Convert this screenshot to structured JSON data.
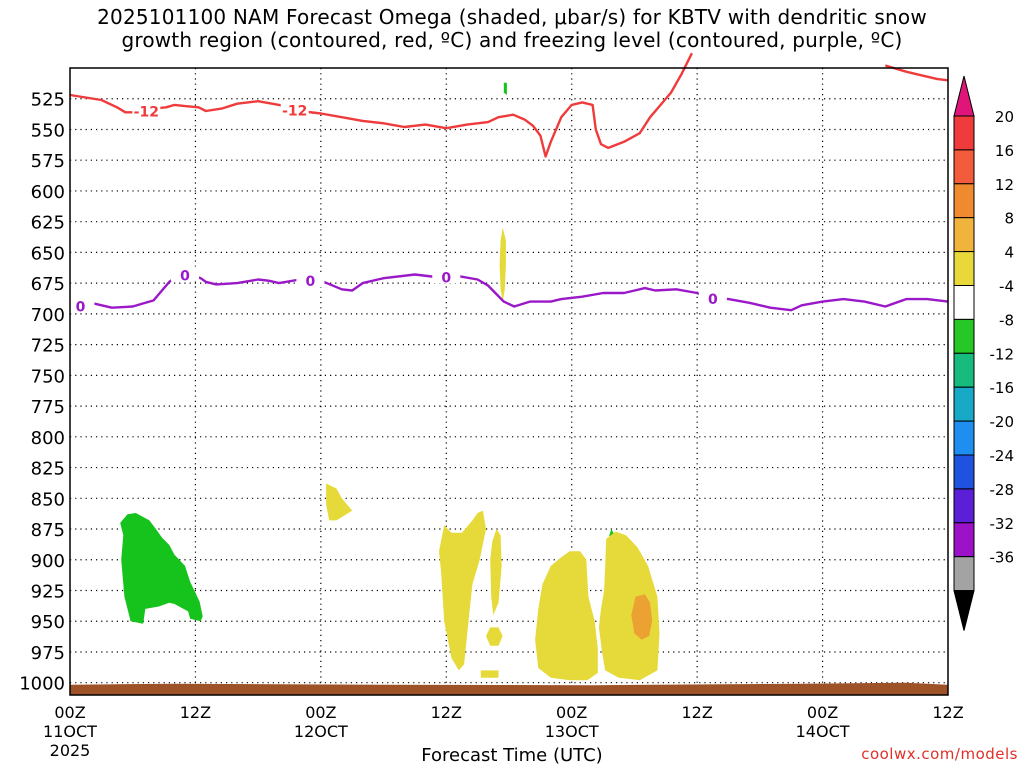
{
  "title": {
    "line1": "2025101100 NAM Forecast Omega (shaded, μbar/s) for KBTV with dendritic snow",
    "line2": "growth region (contoured, red, ºC) and freezing level (contoured, purple, ºC)"
  },
  "xlabel": "Forecast Time (UTC)",
  "credit": "coolwx.com/models",
  "chart_data": {
    "type": "contour",
    "y_axis": {
      "unit": "hPa",
      "range": [
        500,
        1010
      ],
      "ticks": [
        525,
        550,
        575,
        600,
        625,
        650,
        675,
        700,
        725,
        750,
        775,
        800,
        825,
        850,
        875,
        900,
        925,
        950,
        975,
        1000
      ],
      "tick_labels": [
        "525",
        "550",
        "575",
        "600",
        "625",
        "650",
        "675",
        "700",
        "725",
        "750",
        "775",
        "800",
        "825",
        "850",
        "875",
        "900",
        "925",
        "950",
        "975",
        "1000"
      ]
    },
    "x_axis": {
      "unit": "forecast hour",
      "range": [
        0,
        84
      ],
      "ticks": [
        {
          "h": 0,
          "l1": "00Z",
          "l2": "11OCT",
          "l3": "2025"
        },
        {
          "h": 12,
          "l1": "12Z",
          "l2": "",
          "l3": ""
        },
        {
          "h": 24,
          "l1": "00Z",
          "l2": "12OCT",
          "l3": ""
        },
        {
          "h": 36,
          "l1": "12Z",
          "l2": "",
          "l3": ""
        },
        {
          "h": 48,
          "l1": "00Z",
          "l2": "13OCT",
          "l3": ""
        },
        {
          "h": 60,
          "l1": "12Z",
          "l2": "",
          "l3": ""
        },
        {
          "h": 72,
          "l1": "00Z",
          "l2": "14OCT",
          "l3": ""
        },
        {
          "h": 84,
          "l1": "12Z",
          "l2": "",
          "l3": ""
        }
      ]
    },
    "grid": true,
    "colorbar": {
      "labels": [
        "20",
        "16",
        "12",
        "8",
        "4",
        "-4",
        "-8",
        "-12",
        "-16",
        "-20",
        "-24",
        "-28",
        "-32",
        "-36"
      ],
      "colors": [
        "#ef3b3b",
        "#f25c3c",
        "#ef8a2e",
        "#f0b43c",
        "#e8d83a",
        "#ffffff",
        "#27c727",
        "#17bb7d",
        "#17a9c5",
        "#1e8ef0",
        "#1f53df",
        "#5a1fd6",
        "#9b12c9",
        "#a3a3a3"
      ],
      "top_arrow": "#e0157a",
      "bottom_arrow": "#000000"
    },
    "series": [
      {
        "name": "-12",
        "color": "#ef3b3b",
        "points": [
          [
            0,
            522
          ],
          [
            1.5,
            524
          ],
          [
            3,
            526
          ],
          [
            4.5,
            532
          ],
          [
            5.3,
            536
          ],
          [
            6.5,
            536
          ],
          [
            8,
            533
          ],
          [
            9.2,
            532
          ],
          [
            10,
            530
          ],
          [
            11,
            531
          ],
          [
            12.3,
            532
          ],
          [
            13,
            535
          ],
          [
            14.5,
            533
          ],
          [
            16,
            529
          ],
          [
            18,
            527
          ],
          [
            20,
            530
          ],
          [
            22,
            535
          ],
          [
            24,
            537
          ],
          [
            26,
            540
          ],
          [
            28,
            543
          ],
          [
            30,
            545
          ],
          [
            32,
            548
          ],
          [
            34,
            546
          ],
          [
            36,
            549
          ],
          [
            38,
            546
          ],
          [
            40,
            544
          ],
          [
            41,
            540
          ],
          [
            42.4,
            538
          ],
          [
            43.5,
            542
          ],
          [
            44.3,
            547
          ],
          [
            45,
            555
          ],
          [
            45.5,
            572
          ],
          [
            46,
            560
          ],
          [
            47,
            540
          ],
          [
            48,
            530
          ],
          [
            49,
            528
          ],
          [
            50,
            530
          ],
          [
            50.3,
            550
          ],
          [
            50.8,
            562
          ],
          [
            51.5,
            565
          ],
          [
            53,
            560
          ],
          [
            54.5,
            553
          ],
          [
            55.5,
            540
          ],
          [
            56.5,
            530
          ],
          [
            57.5,
            520
          ],
          [
            58.5,
            505
          ],
          [
            59.5,
            488
          ]
        ]
      },
      {
        "name": "-12b",
        "color": "#ef3b3b",
        "points": [
          [
            78,
            498
          ],
          [
            80,
            503
          ],
          [
            81.5,
            506
          ],
          [
            83,
            509
          ],
          [
            84,
            510
          ]
        ]
      },
      {
        "name": "0",
        "color": "#9b18c9",
        "points": [
          [
            0,
            690
          ],
          [
            1,
            693
          ],
          [
            2,
            691
          ],
          [
            4,
            695
          ],
          [
            6,
            694
          ],
          [
            8,
            689
          ],
          [
            9.5,
            674
          ],
          [
            10.5,
            668
          ],
          [
            11.5,
            668
          ],
          [
            12.5,
            671
          ],
          [
            13,
            674
          ],
          [
            14,
            676
          ],
          [
            16,
            675
          ],
          [
            18,
            672
          ],
          [
            19,
            673
          ],
          [
            20,
            675
          ],
          [
            22,
            672
          ],
          [
            24,
            673
          ],
          [
            26,
            680
          ],
          [
            27,
            681
          ],
          [
            28,
            675
          ],
          [
            30,
            671
          ],
          [
            33,
            668
          ],
          [
            35,
            670
          ],
          [
            37,
            669
          ],
          [
            39,
            672
          ],
          [
            40,
            677
          ],
          [
            41.5,
            690
          ],
          [
            42.5,
            694
          ],
          [
            44,
            690
          ],
          [
            46,
            690
          ],
          [
            47,
            688
          ],
          [
            49,
            686
          ],
          [
            51,
            683
          ],
          [
            53,
            683
          ],
          [
            55,
            679
          ],
          [
            56,
            681
          ],
          [
            58,
            680
          ],
          [
            60,
            683
          ],
          [
            61,
            687
          ],
          [
            63,
            688
          ],
          [
            65,
            691
          ],
          [
            67,
            695
          ],
          [
            69,
            697
          ],
          [
            70,
            693
          ],
          [
            72,
            690
          ],
          [
            74,
            688
          ],
          [
            76,
            690
          ],
          [
            78,
            694
          ],
          [
            80,
            688
          ],
          [
            82,
            688
          ],
          [
            84,
            690
          ]
        ]
      }
    ],
    "shaded_regions": [
      {
        "value": -8,
        "color": "#16c31d",
        "points": [
          [
            4.8,
            870
          ],
          [
            5.1,
            880
          ],
          [
            4.9,
            900
          ],
          [
            5.2,
            930
          ],
          [
            5.8,
            950
          ],
          [
            7,
            952
          ],
          [
            7.2,
            940
          ],
          [
            8.5,
            938
          ],
          [
            9.5,
            935
          ],
          [
            10,
            936
          ],
          [
            11.3,
            942
          ],
          [
            11.5,
            948
          ],
          [
            12.5,
            950
          ],
          [
            12.7,
            946
          ],
          [
            12.4,
            934
          ],
          [
            11.5,
            918
          ],
          [
            11,
            905
          ],
          [
            10,
            896
          ],
          [
            9.5,
            888
          ],
          [
            8.8,
            882
          ],
          [
            8.3,
            876
          ],
          [
            7.6,
            868
          ],
          [
            6.3,
            862
          ],
          [
            5.5,
            863
          ]
        ]
      },
      {
        "value": -8,
        "color": "#16c31d",
        "points": [
          [
            51.8,
            875
          ],
          [
            52.1,
            880
          ],
          [
            52.4,
            888
          ],
          [
            52.1,
            893
          ],
          [
            51.8,
            887
          ],
          [
            51.6,
            880
          ]
        ]
      },
      {
        "value": -8,
        "color": "#16c31d",
        "points": [
          [
            41.5,
            512
          ],
          [
            41.8,
            512
          ],
          [
            41.8,
            522
          ],
          [
            41.5,
            520
          ]
        ]
      },
      {
        "value": 4,
        "color": "#e6da3a",
        "points": [
          [
            24.5,
            838
          ],
          [
            25.5,
            842
          ],
          [
            26,
            850
          ],
          [
            27,
            860
          ],
          [
            25.5,
            868
          ],
          [
            24.8,
            868
          ],
          [
            24.5,
            855
          ]
        ]
      },
      {
        "value": 4,
        "color": "#e6da3a",
        "points": [
          [
            41.4,
            630
          ],
          [
            41.7,
            640
          ],
          [
            41.7,
            660
          ],
          [
            41.6,
            680
          ],
          [
            41.4,
            690
          ],
          [
            41.2,
            680
          ],
          [
            41.1,
            660
          ],
          [
            41.2,
            640
          ]
        ]
      },
      {
        "value": 4,
        "color": "#e6da3a",
        "points": [
          [
            35.8,
            872
          ],
          [
            36.5,
            878
          ],
          [
            37.5,
            878
          ],
          [
            38.5,
            868
          ],
          [
            39,
            862
          ],
          [
            39.5,
            860
          ],
          [
            39.8,
            875
          ],
          [
            39.2,
            900
          ],
          [
            38.5,
            920
          ],
          [
            38,
            960
          ],
          [
            37.7,
            985
          ],
          [
            37.2,
            990
          ],
          [
            36.5,
            980
          ],
          [
            35.8,
            950
          ],
          [
            35.5,
            910
          ],
          [
            35.3,
            893
          ]
        ]
      },
      {
        "value": 4,
        "color": "#e6da3a",
        "points": [
          [
            40.8,
            875
          ],
          [
            41.2,
            880
          ],
          [
            41.3,
            905
          ],
          [
            41,
            935
          ],
          [
            40.5,
            945
          ],
          [
            40.3,
            930
          ],
          [
            40.2,
            900
          ],
          [
            40.4,
            885
          ]
        ]
      },
      {
        "value": 4,
        "color": "#e6da3a",
        "points": [
          [
            40.2,
            955
          ],
          [
            41,
            955
          ],
          [
            41.4,
            962
          ],
          [
            41,
            970
          ],
          [
            40.2,
            970
          ],
          [
            39.8,
            962
          ]
        ]
      },
      {
        "value": 4,
        "color": "#e6da3a",
        "points": [
          [
            39.3,
            990
          ],
          [
            41,
            990
          ],
          [
            41,
            996
          ],
          [
            39.3,
            996
          ]
        ]
      },
      {
        "value": 4,
        "color": "#e6da3a",
        "points": [
          [
            47,
            898
          ],
          [
            47.8,
            893
          ],
          [
            48.8,
            893
          ],
          [
            49.4,
            900
          ],
          [
            49.6,
            930
          ],
          [
            50.2,
            950
          ],
          [
            50.5,
            972
          ],
          [
            50.5,
            992
          ],
          [
            49.5,
            998
          ],
          [
            47.8,
            998
          ],
          [
            46,
            996
          ],
          [
            44.8,
            988
          ],
          [
            44.5,
            965
          ],
          [
            44.8,
            940
          ],
          [
            45.2,
            920
          ],
          [
            46,
            905
          ]
        ]
      },
      {
        "value": 4,
        "color": "#e6da3a",
        "points": [
          [
            51.3,
            883
          ],
          [
            52.2,
            877
          ],
          [
            53.2,
            880
          ],
          [
            54.3,
            890
          ],
          [
            55.3,
            905
          ],
          [
            56.2,
            930
          ],
          [
            56.4,
            960
          ],
          [
            56.2,
            990
          ],
          [
            54.5,
            998
          ],
          [
            52.5,
            996
          ],
          [
            51.2,
            990
          ],
          [
            50.9,
            975
          ],
          [
            50.6,
            955
          ],
          [
            50.8,
            940
          ],
          [
            51.1,
            925
          ],
          [
            51.2,
            905
          ]
        ]
      },
      {
        "value": 8,
        "color": "#eca232",
        "points": [
          [
            54.1,
            930
          ],
          [
            55,
            928
          ],
          [
            55.5,
            935
          ],
          [
            55.7,
            950
          ],
          [
            55.4,
            962
          ],
          [
            54.7,
            965
          ],
          [
            54,
            960
          ],
          [
            53.7,
            945
          ]
        ]
      }
    ],
    "ground": {
      "color": "#9e5227",
      "top_hpa": 1000
    }
  }
}
